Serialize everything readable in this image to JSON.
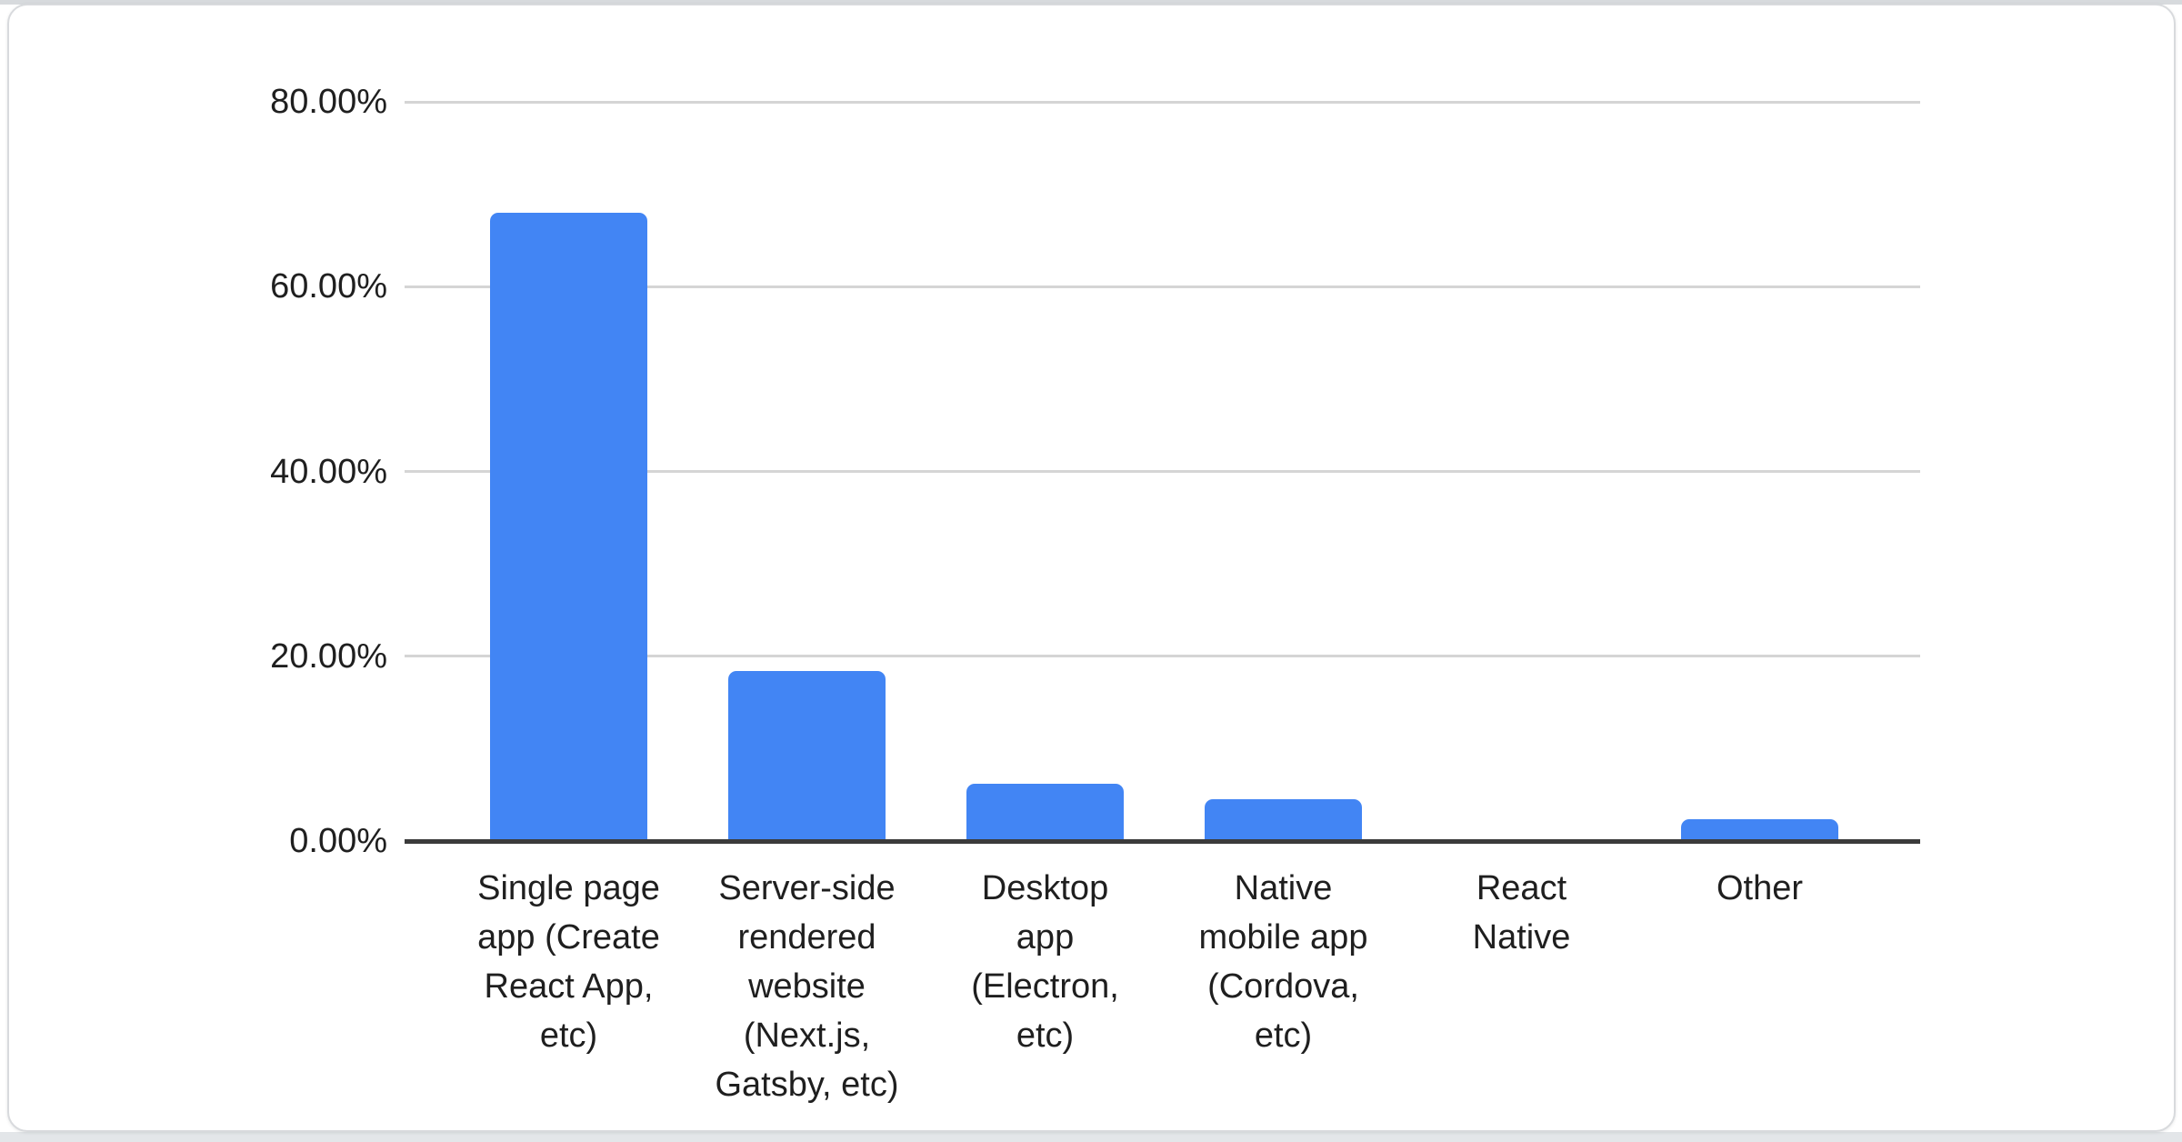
{
  "colors": {
    "bar": "#4285F4",
    "gridline": "#d5d5d5",
    "axis_line": "#3b3b3b",
    "label_text": "#1f1f1f",
    "card_border": "#d8dadd"
  },
  "chart_data": {
    "type": "bar",
    "orientation": "vertical",
    "categories": [
      "Single page app (Create React App, etc)",
      "Server-side rendered website (Next.js, Gatsby, etc)",
      "Desktop app (Electron, etc)",
      "Native mobile app (Cordova, etc)",
      "React Native",
      "Other"
    ],
    "category_label_lines": [
      [
        "Single page",
        "app (Create",
        "React App,",
        "etc)"
      ],
      [
        "Server-side",
        "rendered",
        "website",
        "(Next.js,",
        "Gatsby, etc)"
      ],
      [
        "Desktop",
        "app",
        "(Electron,",
        "etc)"
      ],
      [
        "Native",
        "mobile app",
        "(Cordova,",
        "etc)"
      ],
      [
        "React",
        "Native"
      ],
      [
        "Other"
      ]
    ],
    "values": [
      68.0,
      18.4,
      6.2,
      4.5,
      0,
      2.4
    ],
    "unit": "%",
    "ylim": [
      0,
      80
    ],
    "y_ticks": [
      {
        "value": 0,
        "label": "0.00%"
      },
      {
        "value": 20,
        "label": "20.00%"
      },
      {
        "value": 40,
        "label": "40.00%"
      },
      {
        "value": 60,
        "label": "60.00%"
      },
      {
        "value": 80,
        "label": "80.00%"
      }
    ],
    "grid": true,
    "legend": "none",
    "title": ""
  }
}
